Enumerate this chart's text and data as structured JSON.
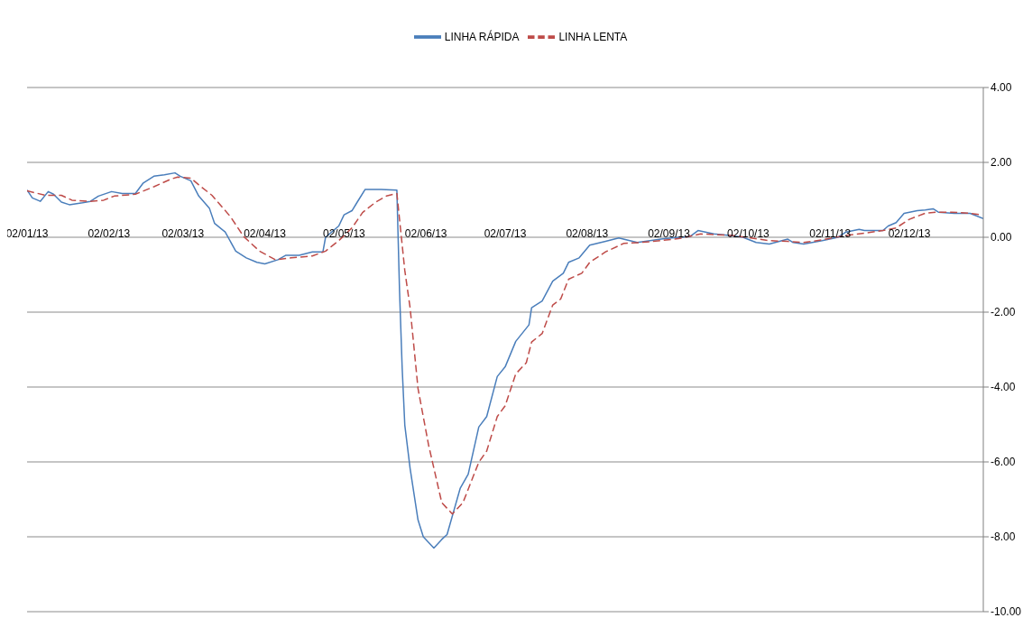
{
  "chart_data": {
    "type": "line",
    "legend": "top",
    "grid": "y",
    "xlim": [
      "2013-01-02",
      "2013-12-30"
    ],
    "xticks": [
      {
        "value": "2013-01-02",
        "label": "02/01/13"
      },
      {
        "value": "2013-02-02",
        "label": "02/02/13"
      },
      {
        "value": "2013-03-02",
        "label": "02/03/13"
      },
      {
        "value": "2013-04-02",
        "label": "02/04/13"
      },
      {
        "value": "2013-05-02",
        "label": "02/05/13"
      },
      {
        "value": "2013-06-02",
        "label": "02/06/13"
      },
      {
        "value": "2013-07-02",
        "label": "02/07/13"
      },
      {
        "value": "2013-08-02",
        "label": "02/08/13"
      },
      {
        "value": "2013-09-02",
        "label": "02/09/13"
      },
      {
        "value": "2013-10-02",
        "label": "02/10/13"
      },
      {
        "value": "2013-11-02",
        "label": "02/11/13"
      },
      {
        "value": "2013-12-02",
        "label": "02/12/13"
      }
    ],
    "ylim": [
      -10,
      4
    ],
    "yticks": [
      {
        "value": 4,
        "label": "4.00"
      },
      {
        "value": 2,
        "label": "2.00"
      },
      {
        "value": 0,
        "label": "0.00"
      },
      {
        "value": -2,
        "label": "-2.00"
      },
      {
        "value": -4,
        "label": "-4.00"
      },
      {
        "value": -6,
        "label": "-6.00"
      },
      {
        "value": -8,
        "label": "-8.00"
      },
      {
        "value": -10,
        "label": "-10.00"
      }
    ],
    "series": [
      {
        "name": "LINHA RÁPIDA",
        "color": "#4a7ebb",
        "line_style": "solid",
        "x": [
          "2013-01-02",
          "2013-01-04",
          "2013-01-07",
          "2013-01-10",
          "2013-01-12",
          "2013-01-15",
          "2013-01-18",
          "2013-01-23",
          "2013-01-26",
          "2013-01-29",
          "2013-02-03",
          "2013-02-07",
          "2013-02-12",
          "2013-02-15",
          "2013-02-19",
          "2013-02-23",
          "2013-02-27",
          "2013-03-01",
          "2013-03-05",
          "2013-03-08",
          "2013-03-12",
          "2013-03-14",
          "2013-03-18",
          "2013-03-22",
          "2013-03-26",
          "2013-03-30",
          "2013-04-02",
          "2013-04-07",
          "2013-04-10",
          "2013-04-15",
          "2013-04-20",
          "2013-04-24",
          "2013-04-25",
          "2013-04-30",
          "2013-05-02",
          "2013-05-05",
          "2013-05-07",
          "2013-05-10",
          "2013-05-13",
          "2013-05-16",
          "2013-05-22",
          "2013-05-23",
          "2013-05-24",
          "2013-05-25",
          "2013-05-27",
          "2013-05-30",
          "2013-06-01",
          "2013-06-05",
          "2013-06-08",
          "2013-06-10",
          "2013-06-15",
          "2013-06-18",
          "2013-06-22",
          "2013-06-25",
          "2013-06-29",
          "2013-07-02",
          "2013-07-06",
          "2013-07-11",
          "2013-07-12",
          "2013-07-16",
          "2013-07-20",
          "2013-07-24",
          "2013-07-26",
          "2013-07-30",
          "2013-08-03",
          "2013-08-09",
          "2013-08-14",
          "2013-08-21",
          "2013-08-30",
          "2013-09-03",
          "2013-09-10",
          "2013-09-13",
          "2013-09-19",
          "2013-09-25",
          "2013-09-30",
          "2013-10-05",
          "2013-10-10",
          "2013-10-17",
          "2013-10-19",
          "2013-10-23",
          "2013-10-30",
          "2013-11-05",
          "2013-11-08",
          "2013-11-13",
          "2013-11-15",
          "2013-11-22",
          "2013-11-24",
          "2013-11-27",
          "2013-11-30",
          "2013-12-05",
          "2013-12-08",
          "2013-12-11",
          "2013-12-13",
          "2013-12-19",
          "2013-12-25",
          "2013-12-30"
        ],
        "values": [
          1.26,
          1.05,
          0.96,
          1.22,
          1.15,
          0.94,
          0.87,
          0.92,
          0.96,
          1.1,
          1.22,
          1.17,
          1.17,
          1.45,
          1.63,
          1.67,
          1.72,
          1.63,
          1.51,
          1.1,
          0.78,
          0.37,
          0.14,
          -0.37,
          -0.55,
          -0.67,
          -0.71,
          -0.6,
          -0.48,
          -0.48,
          -0.39,
          -0.39,
          0,
          0.3,
          0.6,
          0.71,
          0.94,
          1.28,
          1.28,
          1.28,
          1.26,
          -1.42,
          -3.49,
          -5.02,
          -6.17,
          -7.55,
          -8.0,
          -8.3,
          -8.07,
          -7.94,
          -6.7,
          -6.33,
          -5.07,
          -4.79,
          -3.72,
          -3.46,
          -2.78,
          -2.34,
          -1.88,
          -1.7,
          -1.17,
          -0.96,
          -0.67,
          -0.55,
          -0.21,
          -0.11,
          -0.02,
          -0.14,
          -0.05,
          -0.02,
          0.02,
          0.18,
          0.09,
          0.05,
          0,
          -0.14,
          -0.18,
          -0.05,
          -0.14,
          -0.18,
          -0.09,
          0,
          0.14,
          0.21,
          0.18,
          0.18,
          0.3,
          0.39,
          0.64,
          0.71,
          0.73,
          0.76,
          0.67,
          0.64,
          0.64,
          0.5
        ]
      },
      {
        "name": "LINHA LENTA",
        "color": "#be4b48",
        "line_style": "dashed",
        "x": [
          "2013-01-02",
          "2013-01-09",
          "2013-01-15",
          "2013-01-19",
          "2013-01-26",
          "2013-01-31",
          "2013-02-04",
          "2013-02-12",
          "2013-02-19",
          "2013-02-25",
          "2013-02-28",
          "2013-03-05",
          "2013-03-08",
          "2013-03-13",
          "2013-03-20",
          "2013-03-25",
          "2013-03-31",
          "2013-04-06",
          "2013-04-12",
          "2013-04-20",
          "2013-04-25",
          "2013-04-30",
          "2013-05-05",
          "2013-05-09",
          "2013-05-14",
          "2013-05-18",
          "2013-05-22",
          "2013-05-25",
          "2013-05-27",
          "2013-05-30",
          "2013-06-03",
          "2013-06-08",
          "2013-06-12",
          "2013-06-16",
          "2013-06-22",
          "2013-06-25",
          "2013-06-29",
          "2013-07-02",
          "2013-07-06",
          "2013-07-10",
          "2013-07-12",
          "2013-07-16",
          "2013-07-20",
          "2013-07-23",
          "2013-07-26",
          "2013-07-31",
          "2013-08-03",
          "2013-08-09",
          "2013-08-16",
          "2013-08-22",
          "2013-08-30",
          "2013-09-07",
          "2013-09-14",
          "2013-09-26",
          "2013-10-03",
          "2013-10-10",
          "2013-10-17",
          "2013-10-23",
          "2013-10-30",
          "2013-11-08",
          "2013-11-15",
          "2013-11-22",
          "2013-11-27",
          "2013-12-02",
          "2013-12-08",
          "2013-12-12",
          "2013-12-18",
          "2013-12-25",
          "2013-12-29"
        ],
        "values": [
          1.24,
          1.12,
          1.12,
          0.99,
          0.96,
          0.99,
          1.1,
          1.15,
          1.35,
          1.54,
          1.61,
          1.58,
          1.4,
          1.12,
          0.55,
          0.02,
          -0.37,
          -0.6,
          -0.55,
          -0.5,
          -0.37,
          -0.09,
          0.25,
          0.66,
          0.94,
          1.1,
          1.17,
          -0.89,
          -1.88,
          -4.04,
          -5.55,
          -7.09,
          -7.39,
          -7.09,
          -6.01,
          -5.71,
          -4.79,
          -4.5,
          -3.65,
          -3.35,
          -2.8,
          -2.57,
          -1.81,
          -1.65,
          -1.12,
          -0.96,
          -0.67,
          -0.39,
          -0.16,
          -0.14,
          -0.09,
          -0.02,
          0.09,
          0.05,
          -0.02,
          -0.09,
          -0.11,
          -0.14,
          -0.07,
          0.05,
          0.11,
          0.18,
          0.25,
          0.48,
          0.64,
          0.67,
          0.67,
          0.64,
          0.6
        ]
      }
    ]
  }
}
